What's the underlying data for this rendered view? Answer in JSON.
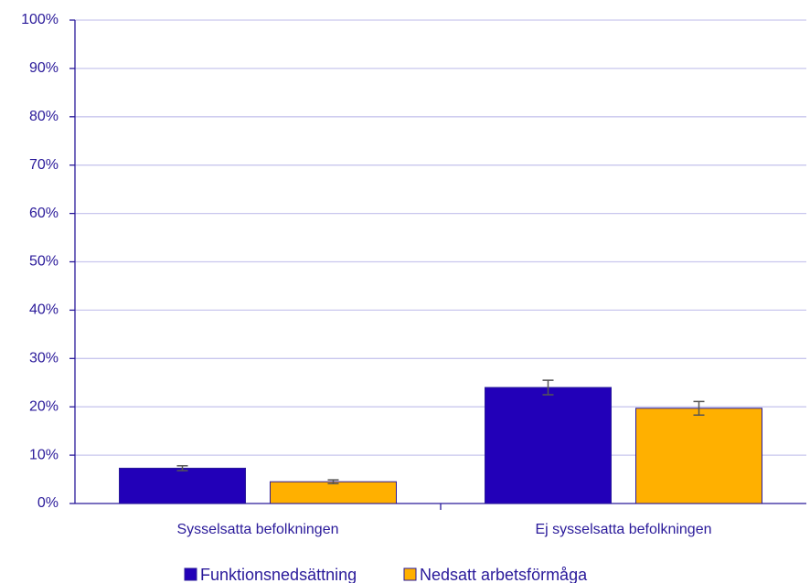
{
  "chart_data": {
    "type": "bar",
    "categories": [
      "Sysselsatta befolkningen",
      "Ej sysselsatta befolkningen"
    ],
    "series": [
      {
        "name": "Funktionsnedsättning",
        "color": "#2200b8",
        "values": [
          7.3,
          24.0
        ],
        "errors": [
          0.5,
          1.5
        ]
      },
      {
        "name": "Nedsatt arbetsförmåga",
        "color": "#ffb000",
        "values": [
          4.5,
          19.7
        ],
        "errors": [
          0.4,
          1.4
        ]
      }
    ],
    "ylim": [
      0,
      100
    ],
    "yticks": [
      {
        "value": 0,
        "label": "0%"
      },
      {
        "value": 10,
        "label": "10%"
      },
      {
        "value": 20,
        "label": "20%"
      },
      {
        "value": 30,
        "label": "30%"
      },
      {
        "value": 40,
        "label": "40%"
      },
      {
        "value": 50,
        "label": "50%"
      },
      {
        "value": 60,
        "label": "60%"
      },
      {
        "value": 70,
        "label": "70%"
      },
      {
        "value": 80,
        "label": "80%"
      },
      {
        "value": 90,
        "label": "90%"
      },
      {
        "value": 100,
        "label": "100%"
      }
    ],
    "grid": true,
    "legend": "bottom"
  }
}
